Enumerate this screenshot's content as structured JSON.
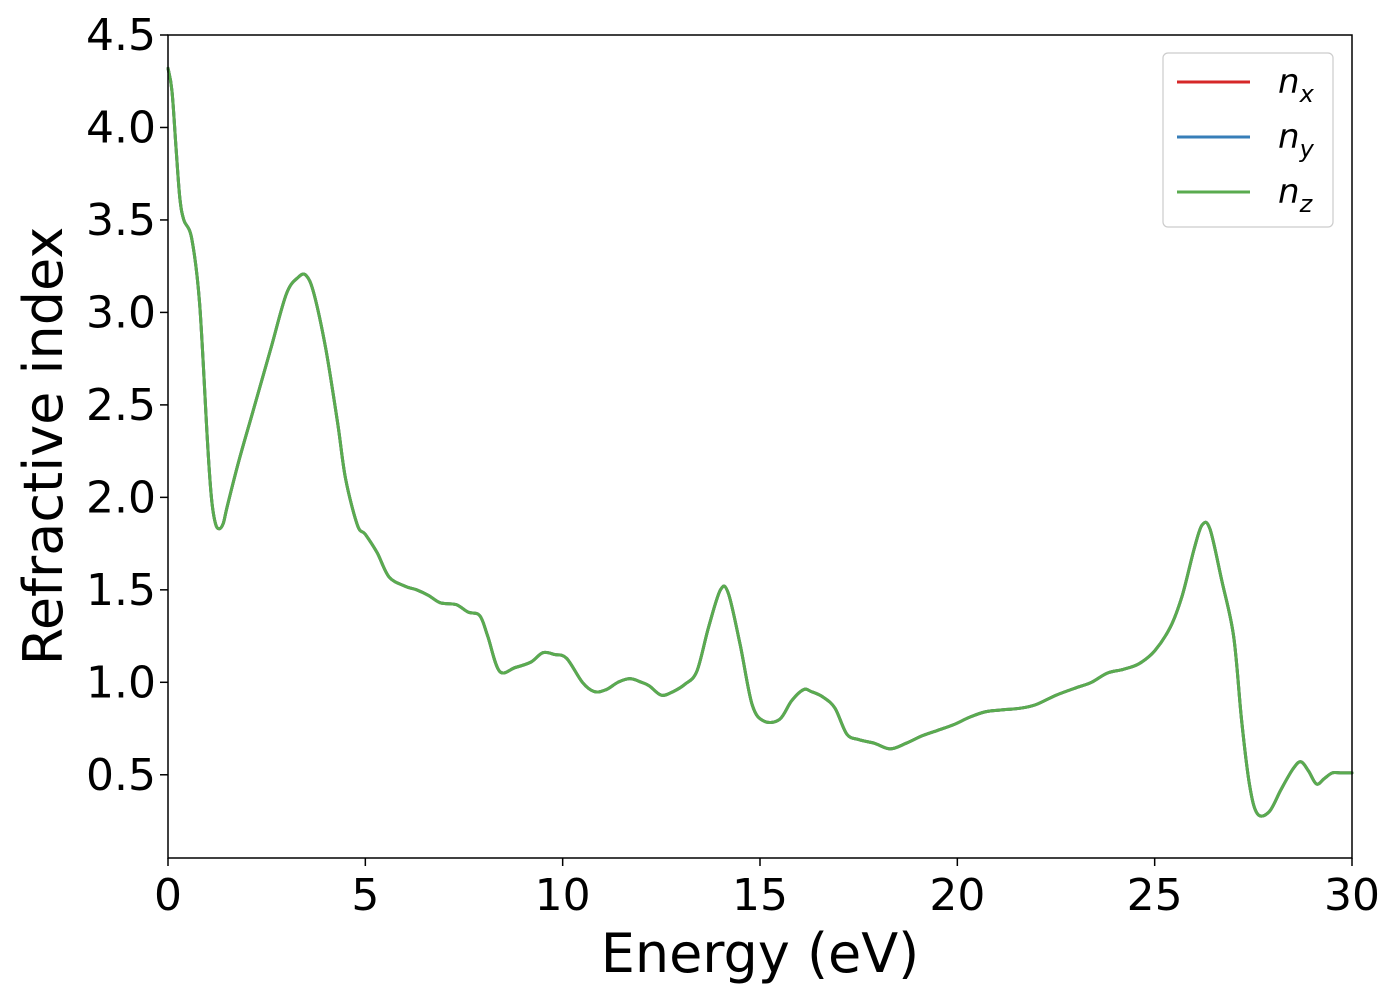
{
  "chart_data": {
    "type": "line",
    "title": "",
    "xlabel": "Energy (eV)",
    "ylabel": "Refractive index",
    "xlim": [
      0,
      30
    ],
    "ylim": [
      0.05,
      4.5
    ],
    "xticks": [
      0,
      5,
      10,
      15,
      20,
      25,
      30
    ],
    "xtick_labels": [
      "0",
      "5",
      "10",
      "15",
      "20",
      "25",
      "30"
    ],
    "yticks": [
      0.5,
      1.0,
      1.5,
      2.0,
      2.5,
      3.0,
      3.5,
      4.0,
      4.5
    ],
    "ytick_labels": [
      "0.5",
      "1.0",
      "1.5",
      "2.0",
      "2.5",
      "3.0",
      "3.5",
      "4.0",
      "4.5"
    ],
    "grid": false,
    "legend_position": "top-right",
    "x": [
      0,
      0.1,
      0.2,
      0.3,
      0.4,
      0.6,
      0.8,
      1.0,
      1.1,
      1.2,
      1.3,
      1.4,
      1.5,
      1.8,
      2.2,
      2.6,
      3.0,
      3.3,
      3.5,
      3.7,
      4.0,
      4.3,
      4.5,
      4.8,
      5.0,
      5.3,
      5.6,
      6.0,
      6.3,
      6.6,
      6.9,
      7.3,
      7.6,
      7.9,
      8.1,
      8.4,
      8.8,
      9.2,
      9.5,
      9.8,
      10.1,
      10.5,
      10.8,
      11.1,
      11.4,
      11.7,
      12.0,
      12.2,
      12.5,
      12.8,
      13.1,
      13.4,
      13.7,
      14.0,
      14.2,
      14.5,
      14.8,
      15.1,
      15.5,
      15.8,
      16.1,
      16.3,
      16.6,
      16.9,
      17.2,
      17.5,
      17.9,
      18.3,
      18.7,
      19.1,
      19.5,
      19.9,
      20.3,
      20.7,
      21.1,
      21.6,
      22.0,
      22.5,
      23.0,
      23.4,
      23.8,
      24.2,
      24.6,
      25.0,
      25.4,
      25.7,
      26.0,
      26.2,
      26.4,
      26.7,
      27.0,
      27.2,
      27.4,
      27.6,
      27.9,
      28.2,
      28.5,
      28.7,
      28.9,
      29.1,
      29.3,
      29.5,
      29.7,
      30.0
    ],
    "series": [
      {
        "name": "n_x",
        "color": "#d62728",
        "values": [
          4.32,
          4.2,
          3.9,
          3.62,
          3.5,
          3.4,
          3.05,
          2.3,
          2.0,
          1.86,
          1.83,
          1.86,
          1.95,
          2.2,
          2.5,
          2.8,
          3.1,
          3.19,
          3.2,
          3.1,
          2.8,
          2.4,
          2.1,
          1.85,
          1.8,
          1.7,
          1.57,
          1.52,
          1.5,
          1.47,
          1.43,
          1.42,
          1.38,
          1.36,
          1.25,
          1.06,
          1.08,
          1.11,
          1.16,
          1.15,
          1.13,
          1.0,
          0.95,
          0.96,
          1.0,
          1.02,
          1.0,
          0.98,
          0.93,
          0.95,
          0.99,
          1.06,
          1.3,
          1.5,
          1.48,
          1.2,
          0.88,
          0.79,
          0.8,
          0.9,
          0.96,
          0.95,
          0.92,
          0.86,
          0.72,
          0.69,
          0.67,
          0.64,
          0.67,
          0.71,
          0.74,
          0.77,
          0.81,
          0.84,
          0.85,
          0.86,
          0.88,
          0.93,
          0.97,
          1.0,
          1.05,
          1.07,
          1.1,
          1.17,
          1.3,
          1.47,
          1.72,
          1.85,
          1.83,
          1.55,
          1.25,
          0.8,
          0.45,
          0.29,
          0.3,
          0.42,
          0.53,
          0.57,
          0.52,
          0.45,
          0.48,
          0.51,
          0.51,
          0.51
        ]
      },
      {
        "name": "n_y",
        "color": "#377eb8",
        "values": [
          4.32,
          4.2,
          3.9,
          3.62,
          3.5,
          3.4,
          3.05,
          2.3,
          2.0,
          1.86,
          1.83,
          1.86,
          1.95,
          2.2,
          2.5,
          2.8,
          3.1,
          3.19,
          3.2,
          3.1,
          2.8,
          2.4,
          2.1,
          1.85,
          1.8,
          1.7,
          1.57,
          1.52,
          1.5,
          1.47,
          1.43,
          1.42,
          1.38,
          1.36,
          1.25,
          1.06,
          1.08,
          1.11,
          1.16,
          1.15,
          1.13,
          1.0,
          0.95,
          0.96,
          1.0,
          1.02,
          1.0,
          0.98,
          0.93,
          0.95,
          0.99,
          1.06,
          1.3,
          1.5,
          1.48,
          1.2,
          0.88,
          0.79,
          0.8,
          0.9,
          0.96,
          0.95,
          0.92,
          0.86,
          0.72,
          0.69,
          0.67,
          0.64,
          0.67,
          0.71,
          0.74,
          0.77,
          0.81,
          0.84,
          0.85,
          0.86,
          0.88,
          0.93,
          0.97,
          1.0,
          1.05,
          1.07,
          1.1,
          1.17,
          1.3,
          1.47,
          1.72,
          1.85,
          1.83,
          1.55,
          1.25,
          0.8,
          0.45,
          0.29,
          0.3,
          0.42,
          0.53,
          0.57,
          0.52,
          0.45,
          0.48,
          0.51,
          0.51,
          0.51
        ]
      },
      {
        "name": "n_z",
        "color": "#5aab4f",
        "values": [
          4.32,
          4.2,
          3.9,
          3.62,
          3.5,
          3.4,
          3.05,
          2.3,
          2.0,
          1.86,
          1.83,
          1.86,
          1.95,
          2.2,
          2.5,
          2.8,
          3.1,
          3.19,
          3.2,
          3.1,
          2.8,
          2.4,
          2.1,
          1.85,
          1.8,
          1.7,
          1.57,
          1.52,
          1.5,
          1.47,
          1.43,
          1.42,
          1.38,
          1.36,
          1.25,
          1.06,
          1.08,
          1.11,
          1.16,
          1.15,
          1.13,
          1.0,
          0.95,
          0.96,
          1.0,
          1.02,
          1.0,
          0.98,
          0.93,
          0.95,
          0.99,
          1.06,
          1.3,
          1.5,
          1.48,
          1.2,
          0.88,
          0.79,
          0.8,
          0.9,
          0.96,
          0.95,
          0.92,
          0.86,
          0.72,
          0.69,
          0.67,
          0.64,
          0.67,
          0.71,
          0.74,
          0.77,
          0.81,
          0.84,
          0.85,
          0.86,
          0.88,
          0.93,
          0.97,
          1.0,
          1.05,
          1.07,
          1.1,
          1.17,
          1.3,
          1.47,
          1.72,
          1.85,
          1.83,
          1.55,
          1.25,
          0.8,
          0.45,
          0.29,
          0.3,
          0.42,
          0.53,
          0.57,
          0.52,
          0.45,
          0.48,
          0.51,
          0.51,
          0.51
        ]
      }
    ],
    "legend": [
      {
        "base": "n",
        "sub": "x",
        "color": "#d62728"
      },
      {
        "base": "n",
        "sub": "y",
        "color": "#377eb8"
      },
      {
        "base": "n",
        "sub": "z",
        "color": "#5aab4f"
      }
    ]
  }
}
